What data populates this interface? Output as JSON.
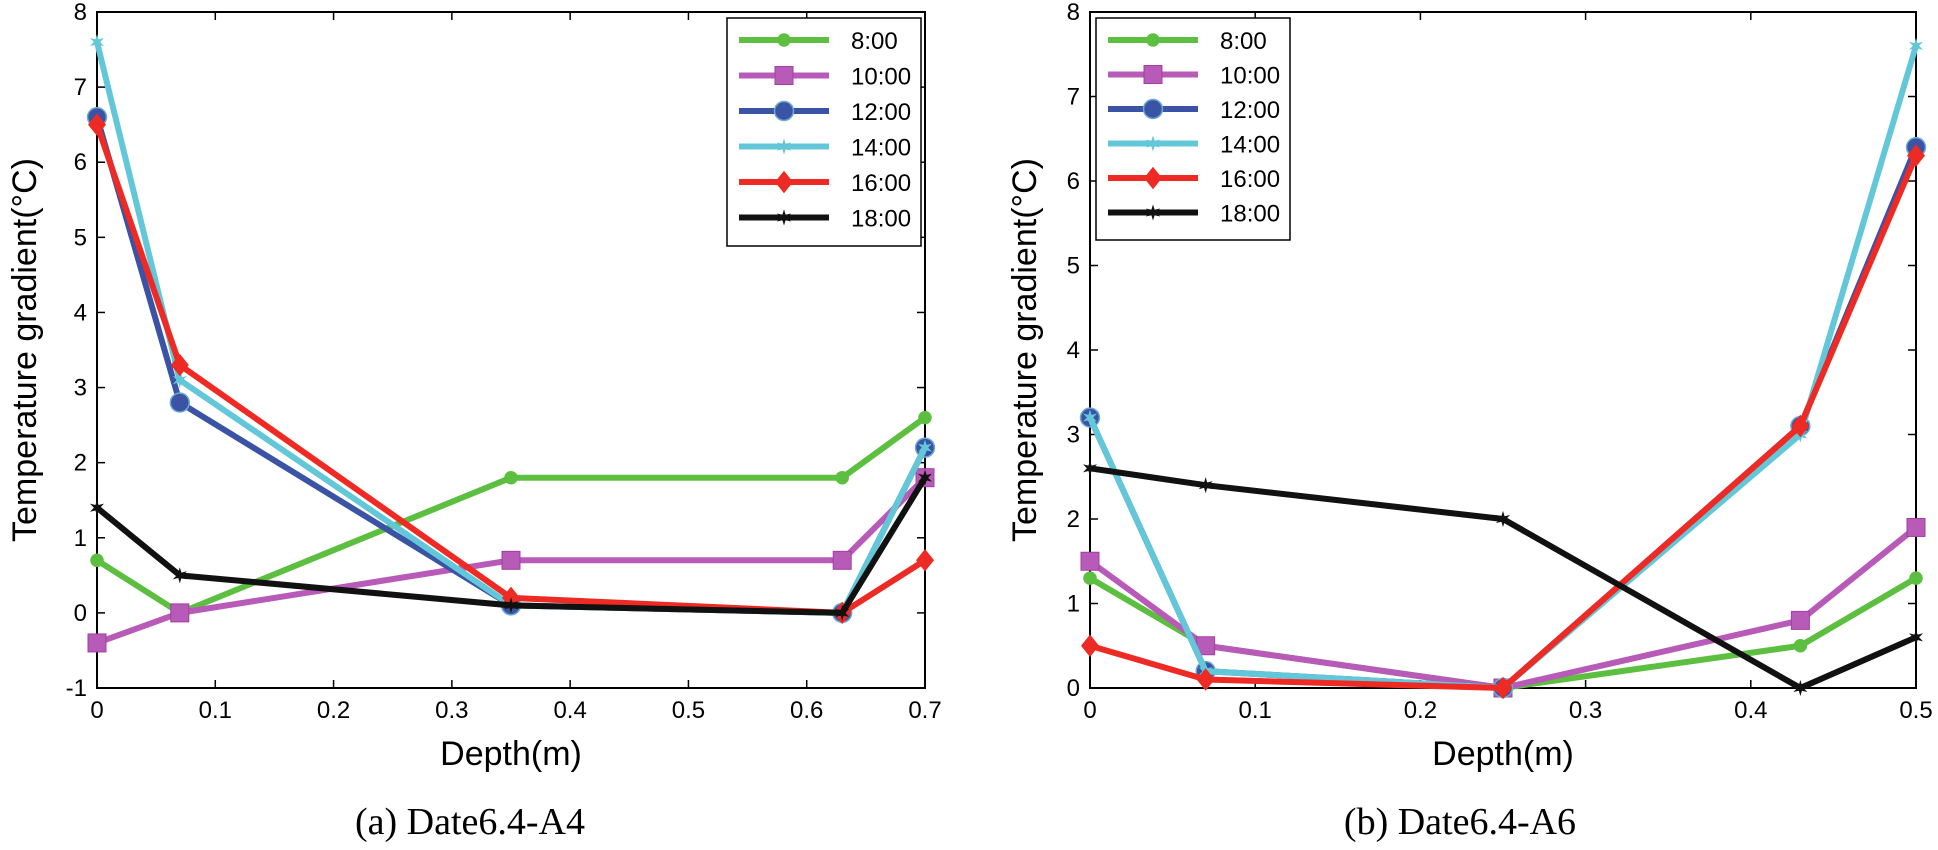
{
  "chart_data": [
    {
      "type": "line",
      "caption": "(a) Date6.4-A4",
      "xlabel": "Depth(m)",
      "ylabel": "Temperature gradient(°C)",
      "xlim": [
        0,
        0.7
      ],
      "ylim": [
        -1,
        8
      ],
      "xticks": [
        0,
        0.1,
        0.2,
        0.3,
        0.4,
        0.5,
        0.6,
        0.7
      ],
      "xticklabels": [
        "0",
        "0.1",
        "0.2",
        "0.3",
        "0.4",
        "0.5",
        "0.6",
        "0.7"
      ],
      "yticks": [
        -1,
        0,
        1,
        2,
        3,
        4,
        5,
        6,
        7,
        8
      ],
      "yticklabels": [
        "-1",
        "0",
        "1",
        "2",
        "3",
        "4",
        "5",
        "6",
        "7",
        "8"
      ],
      "legend_position": "top-right",
      "x": [
        0,
        0.07,
        0.35,
        0.63,
        0.7
      ],
      "series": [
        {
          "name": "8:00",
          "color": "#5cbf3f",
          "marker": "dot",
          "values": [
            0.7,
            0.0,
            1.8,
            1.8,
            2.6
          ]
        },
        {
          "name": "10:00",
          "color": "#b85ab8",
          "marker": "square",
          "values": [
            -0.4,
            0.0,
            0.7,
            0.7,
            1.8
          ]
        },
        {
          "name": "12:00",
          "color": "#3a53a4",
          "marker": "circle",
          "values": [
            6.6,
            2.8,
            0.1,
            0.0,
            2.2
          ]
        },
        {
          "name": "14:00",
          "color": "#62c7d8",
          "marker": "star",
          "values": [
            7.6,
            3.1,
            0.1,
            0.0,
            2.2
          ]
        },
        {
          "name": "16:00",
          "color": "#ee2a24",
          "marker": "diamond",
          "values": [
            6.5,
            3.3,
            0.2,
            0.0,
            0.7
          ]
        },
        {
          "name": "18:00",
          "color": "#111111",
          "marker": "star",
          "values": [
            1.4,
            0.5,
            0.1,
            0.0,
            1.8
          ]
        }
      ]
    },
    {
      "type": "line",
      "caption": "(b) Date6.4-A6",
      "xlabel": "Depth(m)",
      "ylabel": "Temperature gradient(°C)",
      "xlim": [
        0,
        0.5
      ],
      "ylim": [
        0,
        8
      ],
      "xticks": [
        0,
        0.1,
        0.2,
        0.3,
        0.4,
        0.5
      ],
      "xticklabels": [
        "0",
        "0.1",
        "0.2",
        "0.3",
        "0.4",
        "0.5"
      ],
      "yticks": [
        0,
        1,
        2,
        3,
        4,
        5,
        6,
        7,
        8
      ],
      "yticklabels": [
        "0",
        "1",
        "2",
        "3",
        "4",
        "5",
        "6",
        "7",
        "8"
      ],
      "legend_position": "top-left",
      "x": [
        0,
        0.07,
        0.25,
        0.43,
        0.5
      ],
      "series": [
        {
          "name": "8:00",
          "color": "#5cbf3f",
          "marker": "dot",
          "values": [
            1.3,
            0.5,
            0.0,
            0.5,
            1.3
          ]
        },
        {
          "name": "10:00",
          "color": "#b85ab8",
          "marker": "square",
          "values": [
            1.5,
            0.5,
            0.0,
            0.8,
            1.9
          ]
        },
        {
          "name": "12:00",
          "color": "#3a53a4",
          "marker": "circle",
          "values": [
            3.2,
            0.2,
            0.0,
            3.1,
            6.4
          ]
        },
        {
          "name": "14:00",
          "color": "#62c7d8",
          "marker": "star",
          "values": [
            3.2,
            0.2,
            0.0,
            3.0,
            7.6
          ]
        },
        {
          "name": "16:00",
          "color": "#ee2a24",
          "marker": "diamond",
          "values": [
            0.5,
            0.1,
            0.0,
            3.1,
            6.3
          ]
        },
        {
          "name": "18:00",
          "color": "#111111",
          "marker": "star",
          "values": [
            2.6,
            2.4,
            2.0,
            0.0,
            0.6
          ]
        }
      ]
    }
  ]
}
